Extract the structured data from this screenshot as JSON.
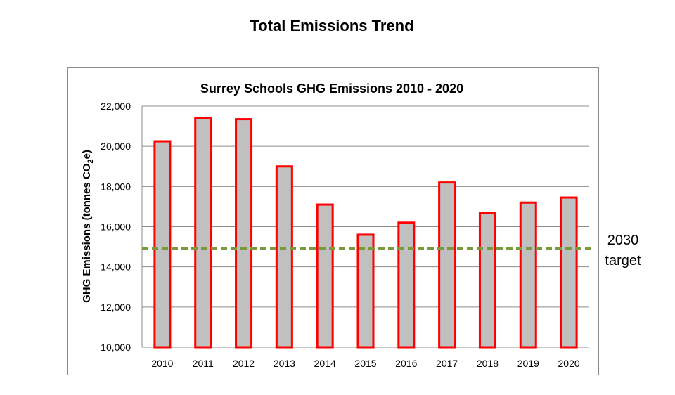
{
  "page": {
    "title": "Total Emissions Trend"
  },
  "chart_data": {
    "type": "bar",
    "title": "Surrey Schools GHG Emissions 2010 - 2020",
    "xlabel": "",
    "ylabel": "GHG Emissions (tonnes CO",
    "ylabel_sub": "2",
    "ylabel_end": "e)",
    "categories": [
      "2010",
      "2011",
      "2012",
      "2013",
      "2014",
      "2015",
      "2016",
      "2017",
      "2018",
      "2019",
      "2020"
    ],
    "values": [
      20250,
      21400,
      21350,
      19000,
      17100,
      15600,
      16200,
      18200,
      16700,
      17200,
      17450
    ],
    "ylim": [
      10000,
      22000
    ],
    "yticks": [
      10000,
      12000,
      14000,
      16000,
      18000,
      20000,
      22000
    ],
    "ytick_labels": [
      "10,000",
      "12,000",
      "14,000",
      "16,000",
      "18,000",
      "20,000",
      "22,000"
    ],
    "grid": true,
    "bar_fill": "#c0c0c0",
    "bar_edge": "#ff0000",
    "target": {
      "value": 14900,
      "label_line1": "2030",
      "label_line2": "target",
      "color": "#7a9a3a",
      "style": "dashed"
    }
  }
}
